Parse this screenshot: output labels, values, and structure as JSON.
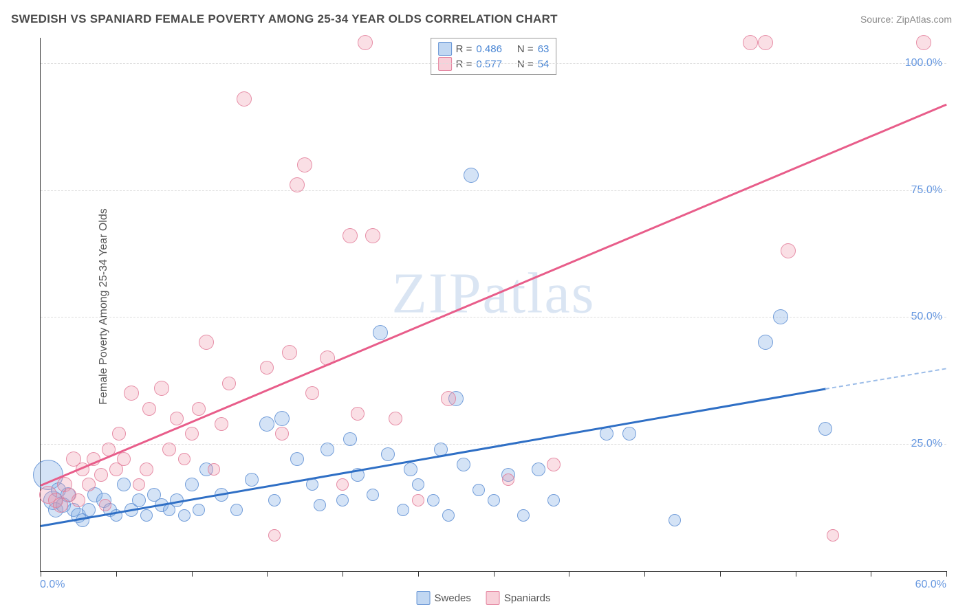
{
  "title": "SWEDISH VS SPANIARD FEMALE POVERTY AMONG 25-34 YEAR OLDS CORRELATION CHART",
  "source_label": "Source: ",
  "source_link": "ZipAtlas.com",
  "ylabel": "Female Poverty Among 25-34 Year Olds",
  "watermark": "ZIPatlas",
  "chart": {
    "type": "scatter",
    "xlim": [
      0,
      60
    ],
    "ylim": [
      0,
      105
    ],
    "xtick_positions": [
      0,
      5,
      10,
      15,
      20,
      25,
      30,
      35,
      40,
      45,
      50,
      55,
      60
    ],
    "xtick_labels_shown": {
      "0": "0.0%",
      "60": "60.0%"
    },
    "ytick_positions": [
      25,
      50,
      75,
      100
    ],
    "ytick_labels": [
      "25.0%",
      "50.0%",
      "75.0%",
      "100.0%"
    ],
    "grid_color": "#dddddd",
    "axis_color": "#333333",
    "background_color": "#ffffff",
    "tick_label_color": "#6798e0",
    "label_fontsize": 16,
    "marker_base_radius": 9,
    "series": [
      {
        "name": "Swedes",
        "color_fill": "rgba(132,175,230,0.35)",
        "color_stroke": "rgba(90,140,210,0.8)",
        "trend_color": "#2f6fc5",
        "trend": {
          "x1": 0,
          "y1": 9,
          "x2": 52,
          "y2": 36,
          "dash_x2": 60,
          "dash_y2": 40
        },
        "R": "0.486",
        "N": "63",
        "points": [
          [
            0.5,
            19,
            22
          ],
          [
            0.8,
            14,
            14
          ],
          [
            1.0,
            12,
            11
          ],
          [
            1.2,
            16,
            11
          ],
          [
            1.5,
            13,
            11
          ],
          [
            1.8,
            15,
            11
          ],
          [
            2.2,
            12,
            10
          ],
          [
            2.5,
            11,
            11
          ],
          [
            2.8,
            10,
            10
          ],
          [
            3.2,
            12,
            10
          ],
          [
            3.6,
            15,
            11
          ],
          [
            4.2,
            14,
            11
          ],
          [
            4.6,
            12,
            10
          ],
          [
            5.0,
            11,
            9
          ],
          [
            5.5,
            17,
            10
          ],
          [
            6.0,
            12,
            10
          ],
          [
            6.5,
            14,
            10
          ],
          [
            7.0,
            11,
            9
          ],
          [
            7.5,
            15,
            10
          ],
          [
            8.0,
            13,
            10
          ],
          [
            8.5,
            12,
            9
          ],
          [
            9.0,
            14,
            10
          ],
          [
            9.5,
            11,
            9
          ],
          [
            10.0,
            17,
            10
          ],
          [
            10.5,
            12,
            9
          ],
          [
            11.0,
            20,
            10
          ],
          [
            12.0,
            15,
            10
          ],
          [
            13.0,
            12,
            9
          ],
          [
            14.0,
            18,
            10
          ],
          [
            15.0,
            29,
            11
          ],
          [
            15.5,
            14,
            9
          ],
          [
            16.0,
            30,
            11
          ],
          [
            17.0,
            22,
            10
          ],
          [
            18.0,
            17,
            9
          ],
          [
            18.5,
            13,
            9
          ],
          [
            19.0,
            24,
            10
          ],
          [
            20.0,
            14,
            9
          ],
          [
            20.5,
            26,
            10
          ],
          [
            21.0,
            19,
            10
          ],
          [
            22.0,
            15,
            9
          ],
          [
            22.5,
            47,
            11
          ],
          [
            23.0,
            23,
            10
          ],
          [
            24.0,
            12,
            9
          ],
          [
            24.5,
            20,
            10
          ],
          [
            25.0,
            17,
            9
          ],
          [
            26.0,
            14,
            9
          ],
          [
            26.5,
            24,
            10
          ],
          [
            27.0,
            11,
            9
          ],
          [
            27.5,
            34,
            11
          ],
          [
            28.0,
            21,
            10
          ],
          [
            28.5,
            78,
            11
          ],
          [
            29.0,
            16,
            9
          ],
          [
            30.0,
            14,
            9
          ],
          [
            31.0,
            19,
            10
          ],
          [
            32.0,
            11,
            9
          ],
          [
            33.0,
            20,
            10
          ],
          [
            34.0,
            14,
            9
          ],
          [
            37.5,
            27,
            10
          ],
          [
            39.0,
            27,
            10
          ],
          [
            42.0,
            10,
            9
          ],
          [
            48.0,
            45,
            11
          ],
          [
            49.0,
            50,
            11
          ],
          [
            52.0,
            28,
            10
          ]
        ]
      },
      {
        "name": "Spaniards",
        "color_fill": "rgba(240,150,170,0.30)",
        "color_stroke": "rgba(225,120,150,0.8)",
        "trend_color": "#e85d8a",
        "trend": {
          "x1": 0,
          "y1": 17,
          "x2": 60,
          "y2": 92
        },
        "R": "0.577",
        "N": "54",
        "points": [
          [
            0.5,
            15,
            13
          ],
          [
            1.0,
            14,
            11
          ],
          [
            1.3,
            13,
            11
          ],
          [
            1.6,
            17,
            11
          ],
          [
            1.9,
            15,
            10
          ],
          [
            2.2,
            22,
            11
          ],
          [
            2.5,
            14,
            10
          ],
          [
            2.8,
            20,
            10
          ],
          [
            3.2,
            17,
            10
          ],
          [
            3.5,
            22,
            10
          ],
          [
            4.0,
            19,
            10
          ],
          [
            4.3,
            13,
            9
          ],
          [
            4.5,
            24,
            10
          ],
          [
            5.0,
            20,
            10
          ],
          [
            5.2,
            27,
            10
          ],
          [
            5.5,
            22,
            10
          ],
          [
            6.0,
            35,
            11
          ],
          [
            6.5,
            17,
            9
          ],
          [
            7.0,
            20,
            10
          ],
          [
            7.2,
            32,
            10
          ],
          [
            8.0,
            36,
            11
          ],
          [
            8.5,
            24,
            10
          ],
          [
            9.0,
            30,
            10
          ],
          [
            9.5,
            22,
            9
          ],
          [
            10.0,
            27,
            10
          ],
          [
            10.5,
            32,
            10
          ],
          [
            11.0,
            45,
            11
          ],
          [
            11.5,
            20,
            9
          ],
          [
            12.0,
            29,
            10
          ],
          [
            12.5,
            37,
            10
          ],
          [
            13.5,
            93,
            11
          ],
          [
            15.0,
            40,
            10
          ],
          [
            15.5,
            7,
            9
          ],
          [
            16.0,
            27,
            10
          ],
          [
            16.5,
            43,
            11
          ],
          [
            17.0,
            76,
            11
          ],
          [
            17.5,
            80,
            11
          ],
          [
            18.0,
            35,
            10
          ],
          [
            19.0,
            42,
            11
          ],
          [
            20.0,
            17,
            9
          ],
          [
            20.5,
            66,
            11
          ],
          [
            21.0,
            31,
            10
          ],
          [
            21.5,
            104,
            11
          ],
          [
            22.0,
            66,
            11
          ],
          [
            23.5,
            30,
            10
          ],
          [
            25.0,
            14,
            9
          ],
          [
            27.0,
            34,
            11
          ],
          [
            31.0,
            18,
            9
          ],
          [
            34.0,
            21,
            10
          ],
          [
            47.0,
            104,
            11
          ],
          [
            48.0,
            104,
            11
          ],
          [
            49.5,
            63,
            11
          ],
          [
            52.5,
            7,
            9
          ],
          [
            58.5,
            104,
            11
          ]
        ]
      }
    ]
  },
  "legend_bottom": {
    "items": [
      {
        "swatch": "blue",
        "label": "Swedes"
      },
      {
        "swatch": "pink",
        "label": "Spaniards"
      }
    ]
  }
}
